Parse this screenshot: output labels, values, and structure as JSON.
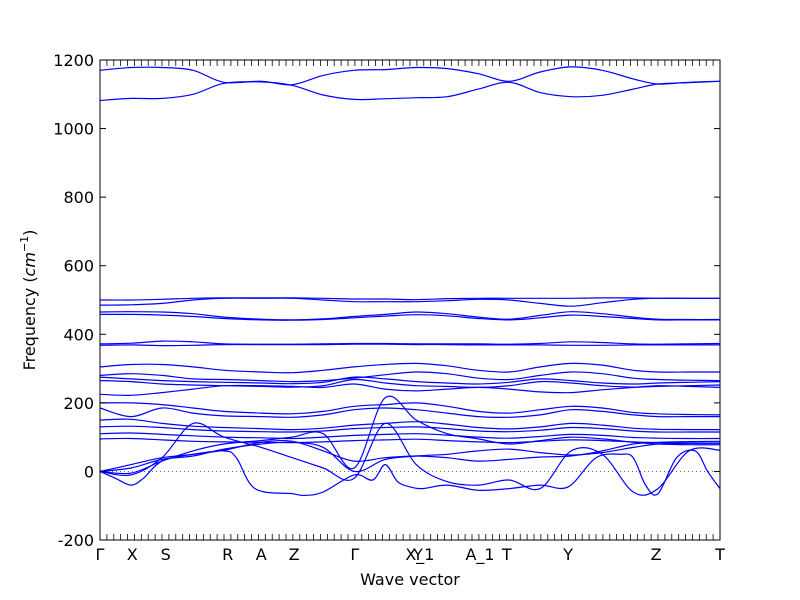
{
  "chart_data": {
    "type": "line",
    "title": "",
    "xlabel": "Wave vector",
    "ylabel_text": "Frequency (",
    "ylabel_unit": "cm",
    "ylabel_exp": "−1",
    "ylabel_close": ")",
    "ylim": [
      -200,
      1200
    ],
    "yticks": [
      -200,
      0,
      200,
      400,
      600,
      800,
      1000,
      1200
    ],
    "xlim": [
      0,
      1
    ],
    "xticks": [
      {
        "label": "Γ",
        "x": 0.0
      },
      {
        "label": "X",
        "x": 0.052
      },
      {
        "label": "S",
        "x": 0.106
      },
      {
        "label": "R",
        "x": 0.206
      },
      {
        "label": "A",
        "x": 0.26
      },
      {
        "label": "Z",
        "x": 0.313
      },
      {
        "label": "Γ",
        "x": 0.411
      },
      {
        "label": "Y",
        "x": 0.513
      },
      {
        "label": "X_1",
        "x": 0.516
      },
      {
        "label": "A_1",
        "x": 0.613
      },
      {
        "label": "T",
        "x": 0.656
      },
      {
        "label": "Y",
        "x": 0.755
      },
      {
        "label": "Z",
        "x": 0.897
      },
      {
        "label": "T",
        "x": 1.0
      }
    ],
    "zero_line": true,
    "line_color": "#0000ff",
    "series": [
      {
        "x": [
          0,
          0.05,
          0.1,
          0.15,
          0.2,
          0.26,
          0.31,
          0.36,
          0.41,
          0.46,
          0.51,
          0.56,
          0.61,
          0.66,
          0.71,
          0.76,
          0.81,
          0.86,
          0.9,
          0.95,
          1.0
        ],
        "y": [
          1170,
          1178,
          1178,
          1170,
          1135,
          1138,
          1128,
          1155,
          1170,
          1172,
          1178,
          1175,
          1160,
          1138,
          1165,
          1180,
          1170,
          1145,
          1130,
          1135,
          1138
        ]
      },
      {
        "x": [
          0,
          0.05,
          0.1,
          0.15,
          0.2,
          0.26,
          0.31,
          0.36,
          0.41,
          0.46,
          0.51,
          0.56,
          0.61,
          0.66,
          0.71,
          0.76,
          0.81,
          0.86,
          0.9,
          0.95,
          1.0
        ],
        "y": [
          1082,
          1088,
          1088,
          1100,
          1132,
          1136,
          1126,
          1098,
          1085,
          1087,
          1090,
          1093,
          1115,
          1135,
          1105,
          1093,
          1097,
          1115,
          1130,
          1134,
          1138
        ]
      },
      {
        "x": [
          0,
          0.05,
          0.1,
          0.15,
          0.2,
          0.26,
          0.31,
          0.36,
          0.41,
          0.46,
          0.51,
          0.56,
          0.61,
          0.66,
          0.71,
          0.76,
          0.81,
          0.86,
          0.9,
          0.95,
          1.0
        ],
        "y": [
          500,
          500,
          502,
          505,
          506,
          506,
          506,
          505,
          503,
          503,
          501,
          504,
          505,
          505,
          505,
          505,
          506,
          506,
          505,
          505,
          505
        ]
      },
      {
        "x": [
          0,
          0.05,
          0.1,
          0.15,
          0.2,
          0.26,
          0.31,
          0.36,
          0.41,
          0.46,
          0.51,
          0.56,
          0.61,
          0.66,
          0.71,
          0.76,
          0.81,
          0.86,
          0.9,
          0.95,
          1.0
        ],
        "y": [
          485,
          486,
          490,
          500,
          505,
          505,
          505,
          500,
          495,
          495,
          495,
          498,
          502,
          500,
          490,
          482,
          492,
          502,
          505,
          505,
          505
        ]
      },
      {
        "x": [
          0,
          0.05,
          0.1,
          0.15,
          0.2,
          0.26,
          0.31,
          0.36,
          0.41,
          0.46,
          0.51,
          0.56,
          0.61,
          0.66,
          0.71,
          0.76,
          0.81,
          0.86,
          0.9,
          0.95,
          1.0
        ],
        "y": [
          465,
          466,
          465,
          460,
          450,
          444,
          442,
          445,
          452,
          458,
          465,
          460,
          450,
          444,
          455,
          466,
          460,
          450,
          444,
          443,
          443
        ]
      },
      {
        "x": [
          0,
          0.05,
          0.1,
          0.15,
          0.2,
          0.26,
          0.31,
          0.36,
          0.41,
          0.46,
          0.51,
          0.56,
          0.61,
          0.66,
          0.71,
          0.76,
          0.81,
          0.86,
          0.9,
          0.95,
          1.0
        ],
        "y": [
          458,
          458,
          456,
          452,
          446,
          442,
          441,
          443,
          448,
          453,
          457,
          454,
          446,
          442,
          448,
          456,
          452,
          446,
          442,
          442,
          442
        ]
      },
      {
        "x": [
          0,
          0.05,
          0.1,
          0.15,
          0.2,
          0.26,
          0.31,
          0.36,
          0.41,
          0.46,
          0.51,
          0.56,
          0.61,
          0.66,
          0.71,
          0.76,
          0.81,
          0.86,
          0.9,
          0.95,
          1.0
        ],
        "y": [
          372,
          374,
          380,
          378,
          372,
          371,
          371,
          372,
          373,
          373,
          372,
          372,
          372,
          371,
          373,
          378,
          376,
          372,
          371,
          372,
          373
        ]
      },
      {
        "x": [
          0,
          0.05,
          0.1,
          0.15,
          0.2,
          0.26,
          0.31,
          0.36,
          0.41,
          0.46,
          0.51,
          0.56,
          0.61,
          0.66,
          0.71,
          0.76,
          0.81,
          0.86,
          0.9,
          0.95,
          1.0
        ],
        "y": [
          368,
          369,
          367,
          368,
          370,
          370,
          370,
          370,
          371,
          371,
          370,
          370,
          369,
          369,
          369,
          368,
          368,
          369,
          369,
          369,
          369
        ]
      },
      {
        "x": [
          0,
          0.05,
          0.1,
          0.15,
          0.2,
          0.26,
          0.31,
          0.36,
          0.41,
          0.46,
          0.51,
          0.56,
          0.61,
          0.66,
          0.71,
          0.76,
          0.81,
          0.86,
          0.9,
          0.95,
          1.0
        ],
        "y": [
          305,
          312,
          312,
          305,
          295,
          290,
          288,
          295,
          305,
          312,
          315,
          308,
          295,
          290,
          305,
          315,
          310,
          295,
          290,
          290,
          290
        ]
      },
      {
        "x": [
          0,
          0.05,
          0.1,
          0.15,
          0.2,
          0.26,
          0.31,
          0.36,
          0.41,
          0.46,
          0.51,
          0.56,
          0.61,
          0.66,
          0.71,
          0.76,
          0.81,
          0.86,
          0.9,
          0.95,
          1.0
        ],
        "y": [
          280,
          285,
          280,
          270,
          268,
          265,
          262,
          265,
          272,
          282,
          290,
          285,
          272,
          268,
          280,
          290,
          285,
          272,
          268,
          266,
          265
        ]
      },
      {
        "x": [
          0,
          0.05,
          0.1,
          0.15,
          0.2,
          0.26,
          0.31,
          0.36,
          0.41,
          0.46,
          0.51,
          0.56,
          0.61,
          0.66,
          0.71,
          0.76,
          0.81,
          0.86,
          0.9,
          0.95,
          1.0
        ],
        "y": [
          275,
          270,
          265,
          262,
          260,
          258,
          256,
          260,
          275,
          270,
          262,
          258,
          255,
          260,
          270,
          265,
          258,
          255,
          258,
          260,
          262
        ]
      },
      {
        "x": [
          0,
          0.05,
          0.1,
          0.15,
          0.2,
          0.26,
          0.31,
          0.36,
          0.41,
          0.46,
          0.51,
          0.56,
          0.61,
          0.66,
          0.71,
          0.76,
          0.81,
          0.86,
          0.9,
          0.95,
          1.0
        ],
        "y": [
          265,
          262,
          255,
          252,
          250,
          248,
          246,
          250,
          268,
          258,
          250,
          248,
          245,
          250,
          262,
          258,
          250,
          246,
          248,
          250,
          252
        ]
      },
      {
        "x": [
          0,
          0.05,
          0.1,
          0.15,
          0.2,
          0.26,
          0.31,
          0.36,
          0.41,
          0.46,
          0.51,
          0.56,
          0.61,
          0.66,
          0.71,
          0.76,
          0.81,
          0.86,
          0.9,
          0.95,
          1.0
        ],
        "y": [
          225,
          222,
          230,
          240,
          250,
          250,
          248,
          245,
          255,
          240,
          235,
          240,
          245,
          240,
          232,
          230,
          238,
          245,
          250,
          248,
          245
        ]
      },
      {
        "x": [
          0,
          0.05,
          0.1,
          0.15,
          0.2,
          0.26,
          0.31,
          0.36,
          0.41,
          0.46,
          0.51,
          0.56,
          0.61,
          0.66,
          0.71,
          0.76,
          0.81,
          0.86,
          0.9,
          0.95,
          1.0
        ],
        "y": [
          200,
          200,
          195,
          185,
          175,
          170,
          168,
          175,
          190,
          195,
          200,
          190,
          175,
          170,
          180,
          190,
          185,
          172,
          168,
          166,
          165
        ]
      },
      {
        "x": [
          0,
          0.05,
          0.1,
          0.15,
          0.2,
          0.26,
          0.31,
          0.36,
          0.41,
          0.46,
          0.51,
          0.56,
          0.61,
          0.66,
          0.71,
          0.76,
          0.81,
          0.86,
          0.9,
          0.95,
          1.0
        ],
        "y": [
          185,
          160,
          185,
          170,
          162,
          160,
          158,
          165,
          180,
          185,
          180,
          170,
          160,
          158,
          165,
          180,
          175,
          165,
          160,
          160,
          160
        ]
      },
      {
        "x": [
          0,
          0.05,
          0.1,
          0.15,
          0.2,
          0.26,
          0.31,
          0.36,
          0.41,
          0.46,
          0.51,
          0.56,
          0.61,
          0.66,
          0.71,
          0.76,
          0.81,
          0.86,
          0.9,
          0.95,
          1.0
        ],
        "y": [
          150,
          152,
          140,
          132,
          128,
          125,
          122,
          126,
          135,
          140,
          145,
          138,
          128,
          124,
          130,
          140,
          135,
          126,
          123,
          122,
          122
        ]
      },
      {
        "x": [
          0,
          0.05,
          0.1,
          0.15,
          0.2,
          0.26,
          0.31,
          0.36,
          0.41,
          0.46,
          0.51,
          0.56,
          0.61,
          0.66,
          0.71,
          0.76,
          0.81,
          0.86,
          0.9,
          0.95,
          1.0
        ],
        "y": [
          130,
          132,
          128,
          122,
          118,
          116,
          115,
          118,
          125,
          128,
          130,
          125,
          118,
          116,
          120,
          128,
          125,
          118,
          115,
          115,
          115
        ]
      },
      {
        "x": [
          0,
          0.05,
          0.1,
          0.15,
          0.2,
          0.26,
          0.31,
          0.36,
          0.41,
          0.46,
          0.51,
          0.56,
          0.61,
          0.66,
          0.71,
          0.76,
          0.81,
          0.86,
          0.9,
          0.95,
          1.0
        ],
        "y": [
          110,
          112,
          108,
          104,
          100,
          98,
          96,
          100,
          105,
          108,
          110,
          106,
          100,
          97,
          102,
          108,
          105,
          99,
          97,
          96,
          96
        ]
      },
      {
        "x": [
          0,
          0.05,
          0.1,
          0.15,
          0.2,
          0.26,
          0.31,
          0.36,
          0.41,
          0.46,
          0.51,
          0.56,
          0.61,
          0.66,
          0.71,
          0.76,
          0.81,
          0.86,
          0.9,
          0.95,
          1.0
        ],
        "y": [
          95,
          96,
          92,
          88,
          86,
          85,
          84,
          86,
          90,
          92,
          94,
          90,
          86,
          84,
          88,
          92,
          90,
          86,
          84,
          83,
          83
        ]
      },
      {
        "x": [
          0,
          0.05,
          0.1,
          0.15,
          0.2,
          0.26,
          0.31,
          0.36,
          0.41,
          0.46,
          0.51,
          0.56,
          0.61,
          0.66,
          0.71,
          0.76,
          0.81,
          0.86,
          0.9,
          0.95,
          1.0
        ],
        "y": [
          0,
          20,
          40,
          50,
          62,
          85,
          88,
          60,
          30,
          40,
          45,
          40,
          30,
          35,
          42,
          45,
          60,
          80,
          85,
          87,
          88
        ]
      },
      {
        "x": [
          0,
          0.05,
          0.1,
          0.15,
          0.2,
          0.26,
          0.31,
          0.36,
          0.41,
          0.46,
          0.51,
          0.56,
          0.61,
          0.66,
          0.71,
          0.76,
          0.81,
          0.86,
          0.9,
          0.95,
          1.0
        ],
        "y": [
          0,
          10,
          35,
          45,
          65,
          80,
          85,
          70,
          0,
          35,
          45,
          50,
          60,
          65,
          55,
          48,
          55,
          70,
          80,
          82,
          82
        ]
      },
      {
        "x": [
          0,
          0.025,
          0.05,
          0.07,
          0.1,
          0.15,
          0.2,
          0.22,
          0.25,
          0.31,
          0.33,
          0.36,
          0.41,
          0.44,
          0.46,
          0.48,
          0.5,
          0.52,
          0.56,
          0.61,
          0.66,
          0.71,
          0.755,
          0.8,
          0.84,
          0.86,
          0.88,
          0.9,
          0.93,
          0.96,
          0.98,
          1.0
        ],
        "y": [
          0,
          -20,
          -40,
          -20,
          30,
          50,
          60,
          40,
          -50,
          -65,
          -70,
          -60,
          -10,
          -25,
          20,
          -30,
          -45,
          -50,
          -40,
          -55,
          -50,
          -40,
          -45,
          40,
          50,
          40,
          -40,
          -65,
          40,
          60,
          0,
          -50
        ]
      },
      {
        "x": [
          0,
          0.05,
          0.1,
          0.15,
          0.2,
          0.26,
          0.31,
          0.36,
          0.41,
          0.46,
          0.51,
          0.56,
          0.61,
          0.66,
          0.71,
          0.76,
          0.81,
          0.86,
          0.9,
          0.95,
          1.0
        ],
        "y": [
          0,
          -10,
          40,
          140,
          100,
          70,
          40,
          10,
          -20,
          140,
          20,
          -30,
          -40,
          -25,
          -50,
          60,
          50,
          -60,
          -50,
          60,
          62
        ]
      },
      {
        "x": [
          0,
          0.05,
          0.1,
          0.15,
          0.2,
          0.26,
          0.31,
          0.36,
          0.41,
          0.46,
          0.51,
          0.56,
          0.61,
          0.66,
          0.71,
          0.76,
          0.81,
          0.86,
          0.9,
          0.95,
          1.0
        ],
        "y": [
          0,
          -5,
          30,
          60,
          80,
          90,
          100,
          110,
          10,
          215,
          150,
          110,
          95,
          80,
          90,
          100,
          95,
          85,
          80,
          78,
          78
        ]
      }
    ]
  }
}
